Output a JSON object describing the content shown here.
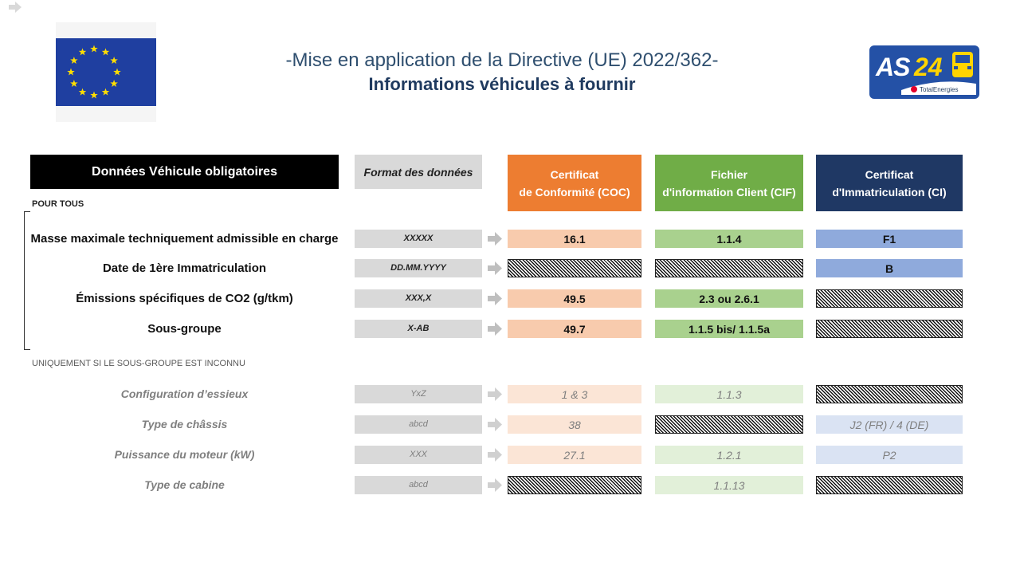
{
  "title": {
    "line1": "-Mise en application de la Directive (UE) 2022/362-",
    "line2": "Informations véhicules à fournir"
  },
  "logo": {
    "text": "AS24",
    "subtext": "TotalEnergies"
  },
  "colors": {
    "coc": "#ed7d31",
    "cif": "#70ad47",
    "ci": "#1f3864",
    "eu_blue": "#1f3fa0",
    "eu_star": "#ffdd00"
  },
  "headers": {
    "main": "Données Véhicule obligatoires",
    "format": "Format des données",
    "coc_line1": "Certificat",
    "coc_line2": "de Conformité (COC)",
    "cif_line1": "Fichier",
    "cif_line2": "d'information Client (CIF)",
    "ci_line1": "Certificat",
    "ci_line2": "d'Immatriculation (CI)"
  },
  "sections": {
    "all": "POUR TOUS",
    "unknown": "UNIQUEMENT SI LE SOUS-GROUPE EST INCONNU"
  },
  "rows": [
    {
      "label": "Masse maximale techniquement admissible en charge",
      "format": "XXXXX",
      "coc": "16.1",
      "cif": "1.1.4",
      "ci": "F1"
    },
    {
      "label": "Date de 1ère Immatriculation",
      "format": "DD.MM.YYYY",
      "coc": "",
      "cif": "",
      "ci": "B"
    },
    {
      "label": "Émissions spécifiques de CO2 (g/tkm)",
      "format": "XXX,X",
      "coc": "49.5",
      "cif": "2.3 ou 2.6.1",
      "ci": ""
    },
    {
      "label": "Sous-groupe",
      "format": "X-AB",
      "coc": "49.7",
      "cif": "1.1.5 bis/ 1.1.5a",
      "ci": ""
    },
    {
      "label": "Configuration d’essieux",
      "format": "YxZ",
      "coc": "1 & 3",
      "cif": "1.1.3",
      "ci": ""
    },
    {
      "label": "Type de châssis",
      "format": "abcd",
      "coc": "38",
      "cif": "",
      "ci": "J2 (FR) / 4 (DE)"
    },
    {
      "label": "Puissance du moteur (kW)",
      "format": "XXX",
      "coc": "27.1",
      "cif": "1.2.1",
      "ci": "P2"
    },
    {
      "label": "Type de cabine",
      "format": "abcd",
      "coc": "",
      "cif": "1.1.13",
      "ci": ""
    }
  ]
}
